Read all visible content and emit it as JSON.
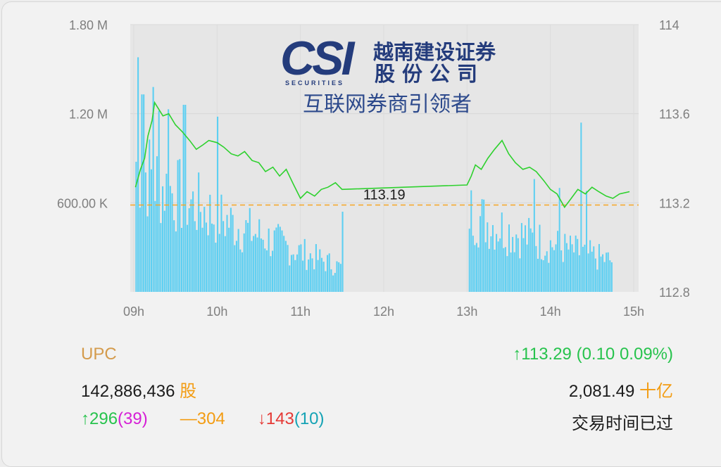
{
  "colors": {
    "volume": "#5ccff2",
    "price": "#2ed12e",
    "reference": "#f5a623",
    "plot_bg": "#e6e6e6",
    "up": "#27c34d",
    "down": "#e53935",
    "unchanged": "#f39c12",
    "symbol": "#d49b4c",
    "ceiling": "#d61fd6",
    "floor": "#15a3b5"
  },
  "watermark": {
    "logo_letters": "CSI",
    "logo_caption": "SECURITIES",
    "company_line1": "越南建设证券",
    "company_line2": "股份公司",
    "slogan": "互联网券商引领者"
  },
  "chart_data": {
    "type": "line",
    "title": "",
    "x_tick_labels": [
      "09h",
      "10h",
      "11h",
      "12h",
      "13h",
      "14h",
      "15h"
    ],
    "xlim": [
      9,
      15
    ],
    "volume_axis": {
      "ylim": [
        0,
        1800000
      ],
      "tick_values": [
        600000,
        1200000,
        1800000
      ],
      "tick_labels": [
        "600.00 K",
        "1.20 M",
        "1.80 M"
      ]
    },
    "price_axis": {
      "ylim": [
        112.8,
        114.0
      ],
      "tick_labels": [
        "112.8",
        "113.2",
        "113.6",
        "114"
      ]
    },
    "reference": {
      "value": 113.19,
      "label": "113.19"
    },
    "series": [
      {
        "kind": "line",
        "axis": "price",
        "points": [
          [
            9.02,
            113.27
          ],
          [
            9.08,
            113.35
          ],
          [
            9.13,
            113.4
          ],
          [
            9.17,
            113.5
          ],
          [
            9.22,
            113.57
          ],
          [
            9.25,
            113.65
          ],
          [
            9.3,
            113.62
          ],
          [
            9.35,
            113.59
          ],
          [
            9.42,
            113.6
          ],
          [
            9.5,
            113.55
          ],
          [
            9.58,
            113.52
          ],
          [
            9.67,
            113.48
          ],
          [
            9.75,
            113.44
          ],
          [
            9.83,
            113.46
          ],
          [
            9.9,
            113.48
          ],
          [
            10.0,
            113.47
          ],
          [
            10.08,
            113.45
          ],
          [
            10.17,
            113.42
          ],
          [
            10.25,
            113.41
          ],
          [
            10.33,
            113.43
          ],
          [
            10.42,
            113.39
          ],
          [
            10.5,
            113.38
          ],
          [
            10.58,
            113.34
          ],
          [
            10.67,
            113.36
          ],
          [
            10.75,
            113.32
          ],
          [
            10.83,
            113.35
          ],
          [
            10.92,
            113.28
          ],
          [
            11.0,
            113.22
          ],
          [
            11.08,
            113.25
          ],
          [
            11.17,
            113.23
          ],
          [
            11.25,
            113.26
          ],
          [
            11.33,
            113.27
          ],
          [
            11.42,
            113.29
          ],
          [
            11.5,
            113.26
          ],
          [
            13.0,
            113.28
          ],
          [
            13.05,
            113.32
          ],
          [
            13.1,
            113.37
          ],
          [
            13.17,
            113.35
          ],
          [
            13.25,
            113.4
          ],
          [
            13.33,
            113.44
          ],
          [
            13.42,
            113.48
          ],
          [
            13.5,
            113.42
          ],
          [
            13.58,
            113.38
          ],
          [
            13.67,
            113.35
          ],
          [
            13.75,
            113.36
          ],
          [
            13.83,
            113.34
          ],
          [
            13.92,
            113.3
          ],
          [
            14.0,
            113.26
          ],
          [
            14.08,
            113.24
          ],
          [
            14.17,
            113.18
          ],
          [
            14.25,
            113.22
          ],
          [
            14.33,
            113.26
          ],
          [
            14.42,
            113.24
          ],
          [
            14.5,
            113.27
          ],
          [
            14.58,
            113.25
          ],
          [
            14.67,
            113.23
          ],
          [
            14.75,
            113.22
          ],
          [
            14.83,
            113.24
          ],
          [
            14.95,
            113.25
          ]
        ]
      },
      {
        "kind": "bar",
        "axis": "volume",
        "sessions": [
          {
            "start": 9.02,
            "end": 11.52,
            "count": 110,
            "first": 930000,
            "last": 170000,
            "spikes": [
              [
                9.05,
                1580000
              ],
              [
                9.1,
                1330000
              ],
              [
                9.22,
                1380000
              ],
              [
                9.3,
                1220000
              ],
              [
                9.4,
                1230000
              ],
              [
                9.6,
                1260000
              ],
              [
                10.0,
                1180000
              ],
              [
                11.5,
                540000
              ]
            ]
          },
          {
            "start": 13.02,
            "end": 14.75,
            "count": 80,
            "first": 580000,
            "last": 220000,
            "spikes": [
              [
                13.0,
                800000
              ],
              [
                13.8,
                760000
              ],
              [
                14.1,
                700000
              ],
              [
                14.36,
                1140000
              ],
              [
                14.42,
                680000
              ]
            ]
          }
        ]
      }
    ]
  },
  "summary": {
    "symbol": "UPC",
    "volume": "142,886,436",
    "volume_unit": "股",
    "advances_arrow": "↑",
    "advances": "296",
    "advances_ceiling": "(39)",
    "unchanged_dash": "—",
    "unchanged": "304",
    "declines_arrow": "↓",
    "declines": "143",
    "declines_floor": "(10)",
    "price_arrow": "↑",
    "price": "113.29",
    "change": "(0.10 0.09%)",
    "value": "2,081.49",
    "value_unit": "十亿",
    "status": "交易时间已过"
  }
}
